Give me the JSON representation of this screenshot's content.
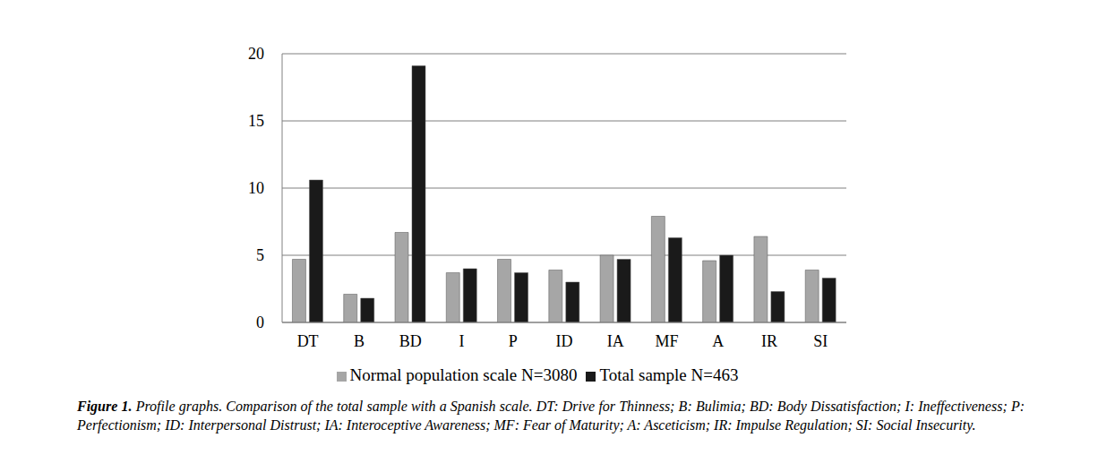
{
  "chart_data": {
    "type": "bar",
    "caption_label": "Figure 1.",
    "caption": "Profile graphs. Comparison of the total sample with a Spanish scale. DT: Drive for Thinness; B: Bulimia; BD: Body Dissatisfaction; I: Ineffectiveness; P: Perfectionism; ID: Interpersonal Distrust; IA: Interoceptive Awareness; MF: Fear of Maturity; A: Asceticism; IR: Impulse Regulation; SI: Social Insecurity.",
    "categories": [
      "DT",
      "B",
      "BD",
      "I",
      "P",
      "ID",
      "IA",
      "MF",
      "A",
      "IR",
      "SI"
    ],
    "series": [
      {
        "name": "Normal population scale N=3080",
        "color": "#a6a6a6",
        "values": [
          4.7,
          2.1,
          6.7,
          3.7,
          4.7,
          3.9,
          5.0,
          7.9,
          4.6,
          6.4,
          3.9
        ]
      },
      {
        "name": "Total sample N=463",
        "color": "#1a1a1a",
        "values": [
          10.6,
          1.8,
          19.1,
          4.0,
          3.7,
          3.0,
          4.7,
          6.3,
          5.0,
          2.3,
          3.3
        ]
      }
    ],
    "ylim": [
      0,
      20
    ],
    "yticks": [
      0,
      5,
      10,
      15,
      20
    ],
    "grid": true,
    "legend": "bottom"
  }
}
